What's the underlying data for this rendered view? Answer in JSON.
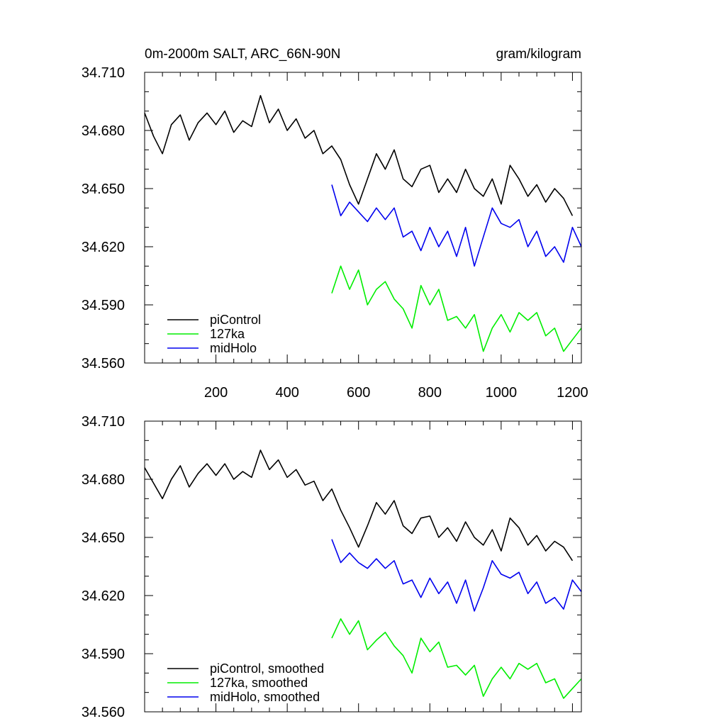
{
  "chart_data": [
    {
      "type": "line",
      "title": "0m-2000m SALT, ARC_66N-90N",
      "units": "gram/kilogram",
      "xlabel": "",
      "ylabel": "",
      "xlim": [
        0,
        1225
      ],
      "ylim": [
        34.56,
        34.71
      ],
      "xticks": [
        200,
        400,
        600,
        800,
        1000,
        1200
      ],
      "yticks": [
        34.56,
        34.59,
        34.62,
        34.65,
        34.68,
        34.71
      ],
      "ytick_labels": [
        "34.560",
        "34.590",
        "34.620",
        "34.650",
        "34.680",
        "34.710"
      ],
      "grid": false,
      "legend": "bottom-left",
      "series": [
        {
          "name": "piControl",
          "color": "#000000",
          "x": [
            0,
            25,
            50,
            75,
            100,
            125,
            150,
            175,
            200,
            225,
            250,
            275,
            300,
            325,
            350,
            375,
            400,
            425,
            450,
            475,
            500,
            525,
            550,
            575,
            600,
            625,
            650,
            675,
            700,
            725,
            750,
            775,
            800,
            825,
            850,
            875,
            900,
            925,
            950,
            975,
            1000,
            1025,
            1050,
            1075,
            1100,
            1125,
            1150,
            1175,
            1200
          ],
          "y": [
            34.689,
            34.677,
            34.668,
            34.683,
            34.688,
            34.675,
            34.684,
            34.689,
            34.683,
            34.69,
            34.679,
            34.685,
            34.682,
            34.698,
            34.684,
            34.691,
            34.68,
            34.686,
            34.676,
            34.68,
            34.668,
            34.672,
            34.665,
            34.652,
            34.642,
            34.655,
            34.668,
            34.66,
            34.67,
            34.655,
            34.651,
            34.66,
            34.662,
            34.648,
            34.655,
            34.648,
            34.66,
            34.65,
            34.646,
            34.655,
            34.642,
            34.662,
            34.655,
            34.646,
            34.652,
            34.643,
            34.65,
            34.645,
            34.636
          ]
        },
        {
          "name": "127ka",
          "color": "#00ee00",
          "x": [
            525,
            550,
            575,
            600,
            625,
            650,
            675,
            700,
            725,
            750,
            775,
            800,
            825,
            850,
            875,
            900,
            925,
            950,
            975,
            1000,
            1025,
            1050,
            1075,
            1100,
            1125,
            1150,
            1175,
            1200,
            1225
          ],
          "y": [
            34.596,
            34.61,
            34.598,
            34.608,
            34.59,
            34.598,
            34.602,
            34.593,
            34.588,
            34.578,
            34.6,
            34.59,
            34.598,
            34.582,
            34.584,
            34.578,
            34.585,
            34.566,
            34.578,
            34.585,
            34.576,
            34.586,
            34.582,
            34.586,
            34.574,
            34.578,
            34.566,
            34.572,
            34.578
          ]
        },
        {
          "name": "midHolo",
          "color": "#0000ee",
          "x": [
            525,
            550,
            575,
            600,
            625,
            650,
            675,
            700,
            725,
            750,
            775,
            800,
            825,
            850,
            875,
            900,
            925,
            950,
            975,
            1000,
            1025,
            1050,
            1075,
            1100,
            1125,
            1150,
            1175,
            1200,
            1225
          ],
          "y": [
            34.652,
            34.636,
            34.643,
            34.638,
            34.633,
            34.64,
            34.634,
            34.64,
            34.625,
            34.628,
            34.618,
            34.63,
            34.62,
            34.628,
            34.615,
            34.63,
            34.61,
            34.625,
            34.64,
            34.632,
            34.63,
            34.634,
            34.62,
            34.628,
            34.615,
            34.62,
            34.612,
            34.63,
            34.62
          ]
        }
      ]
    },
    {
      "type": "line",
      "title": "",
      "xlabel": "",
      "ylabel": "",
      "xlim": [
        0,
        1225
      ],
      "ylim": [
        34.56,
        34.71
      ],
      "xticks": [
        200,
        400,
        600,
        800,
        1000,
        1200
      ],
      "yticks": [
        34.56,
        34.59,
        34.62,
        34.65,
        34.68,
        34.71
      ],
      "ytick_labels": [
        "34.560",
        "34.590",
        "34.620",
        "34.650",
        "34.680",
        "34.710"
      ],
      "grid": false,
      "legend": "bottom-left",
      "series": [
        {
          "name": "piControl, smoothed",
          "color": "#000000",
          "x": [
            0,
            25,
            50,
            75,
            100,
            125,
            150,
            175,
            200,
            225,
            250,
            275,
            300,
            325,
            350,
            375,
            400,
            425,
            450,
            475,
            500,
            525,
            550,
            575,
            600,
            625,
            650,
            675,
            700,
            725,
            750,
            775,
            800,
            825,
            850,
            875,
            900,
            925,
            950,
            975,
            1000,
            1025,
            1050,
            1075,
            1100,
            1125,
            1150,
            1175,
            1200
          ],
          "y": [
            34.686,
            34.678,
            34.67,
            34.68,
            34.687,
            34.676,
            34.683,
            34.688,
            34.682,
            34.688,
            34.68,
            34.684,
            34.681,
            34.695,
            34.685,
            34.69,
            34.681,
            34.685,
            34.677,
            34.679,
            34.669,
            34.675,
            34.664,
            34.655,
            34.645,
            34.656,
            34.668,
            34.662,
            34.669,
            34.656,
            34.652,
            34.66,
            34.661,
            34.65,
            34.655,
            34.648,
            34.658,
            34.65,
            34.646,
            34.654,
            34.643,
            34.66,
            34.655,
            34.646,
            34.651,
            34.643,
            34.648,
            34.645,
            34.638
          ]
        },
        {
          "name": "127ka, smoothed",
          "color": "#00ee00",
          "x": [
            525,
            550,
            575,
            600,
            625,
            650,
            675,
            700,
            725,
            750,
            775,
            800,
            825,
            850,
            875,
            900,
            925,
            950,
            975,
            1000,
            1025,
            1050,
            1075,
            1100,
            1125,
            1150,
            1175,
            1200,
            1225
          ],
          "y": [
            34.598,
            34.608,
            34.6,
            34.607,
            34.592,
            34.597,
            34.601,
            34.594,
            34.589,
            34.58,
            34.598,
            34.591,
            34.596,
            34.583,
            34.584,
            34.579,
            34.584,
            34.568,
            34.577,
            34.583,
            34.577,
            34.585,
            34.582,
            34.585,
            34.575,
            34.577,
            34.567,
            34.572,
            34.577
          ]
        },
        {
          "name": "midHolo, smoothed",
          "color": "#0000ee",
          "x": [
            525,
            550,
            575,
            600,
            625,
            650,
            675,
            700,
            725,
            750,
            775,
            800,
            825,
            850,
            875,
            900,
            925,
            950,
            975,
            1000,
            1025,
            1050,
            1075,
            1100,
            1125,
            1150,
            1175,
            1200,
            1225
          ],
          "y": [
            34.649,
            34.637,
            34.642,
            34.637,
            34.634,
            34.639,
            34.634,
            34.638,
            34.626,
            34.628,
            34.619,
            34.629,
            34.621,
            34.627,
            34.616,
            34.628,
            34.612,
            34.624,
            34.638,
            34.631,
            34.629,
            34.632,
            34.621,
            34.627,
            34.616,
            34.619,
            34.613,
            34.628,
            34.622
          ]
        }
      ]
    }
  ]
}
